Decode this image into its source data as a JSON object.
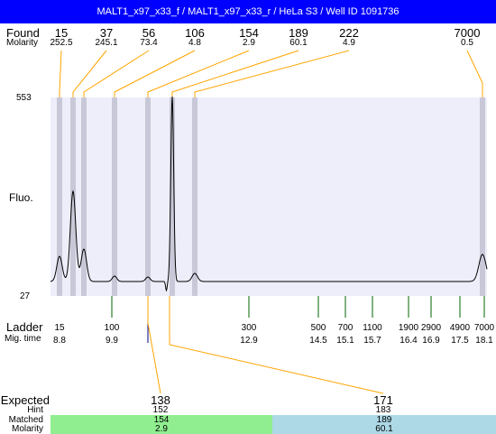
{
  "title": "MALT1_x97_x33_f / MALT1_x97_x33_r / HeLa S3 / Well ID 1091736",
  "found_label": "Found",
  "molarity_label": "Molarity",
  "found": [
    {
      "size": "15",
      "molarity": "252.5"
    },
    {
      "size": "37",
      "molarity": "245.1"
    },
    {
      "size": "56",
      "molarity": "73.4"
    },
    {
      "size": "106",
      "molarity": "4.8"
    },
    {
      "size": "154",
      "molarity": "2.9"
    },
    {
      "size": "189",
      "molarity": "60.1"
    },
    {
      "size": "222",
      "molarity": "4.9"
    },
    {
      "size": "7000",
      "molarity": "0.5"
    }
  ],
  "y_top_label": "553",
  "y_bottom_label": "27",
  "fluo_label": "Fluo.",
  "ladder_label": "Ladder",
  "migtime_label": "Mig. time",
  "ladder": [
    {
      "size": "15",
      "time": "8.8"
    },
    {
      "size": "100",
      "time": "9.9"
    },
    {
      "size": "300",
      "time": "12.9"
    },
    {
      "size": "500",
      "time": "14.5"
    },
    {
      "size": "700",
      "time": "15.1"
    },
    {
      "size": "1100",
      "time": "15.7"
    },
    {
      "size": "1900",
      "time": "16.4"
    },
    {
      "size": "2900",
      "time": "16.9"
    },
    {
      "size": "4900",
      "time": "17.5"
    },
    {
      "size": "7000",
      "time": "18.1"
    }
  ],
  "expected_label": "Expected",
  "hint_label": "Hint",
  "matched_label": "Matched",
  "molarity2_label": "Molarity",
  "expected": [
    {
      "expected": "138",
      "hint": "152",
      "matched": "154",
      "molarity": "2.9",
      "color": "#90ee90"
    },
    {
      "expected": "171",
      "hint": "183",
      "matched": "189",
      "molarity": "60.1",
      "color": "#add8e6"
    }
  ],
  "colors": {
    "title_bar": "#0000ff",
    "plot_bg": "#eeeefa",
    "band": "#c8c8d8",
    "connector": "#ffa500",
    "ladder_tick": "#006400",
    "marker": "#00008b"
  }
}
